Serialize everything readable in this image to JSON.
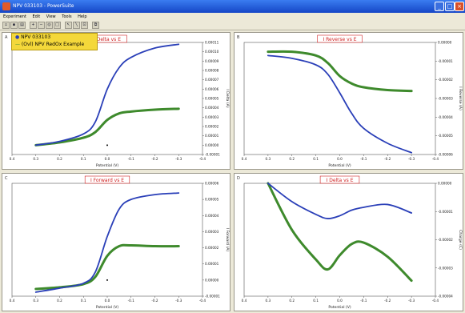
{
  "window": {
    "title": "NPV 033103 - PowerSuite"
  },
  "menu": [
    "Experiment",
    "Edit",
    "View",
    "Tools",
    "Help"
  ],
  "toolbar_icons": [
    "open-icon",
    "save-icon",
    "print-icon",
    "zoom-in-icon",
    "zoom-out-icon",
    "zoom-fit-icon",
    "zoom-box-icon",
    "cursor-icon",
    "line-icon",
    "scale-icon",
    "copy-icon"
  ],
  "legend": {
    "entries": [
      "NPV 033103",
      "(Ovl) NPV RedOx Example"
    ]
  },
  "colors": {
    "series_blue": "#2a3fb8",
    "series_green": "#3e8a2c",
    "title_red": "#d02020"
  },
  "panels": [
    {
      "label": "A",
      "title": "I Delta vs E",
      "xlabel": "Potential (V)",
      "ylabel": "I Delta (A)"
    },
    {
      "label": "B",
      "title": "I Reverse vs E",
      "xlabel": "Potential (V)",
      "ylabel": "I Reverse (A)"
    },
    {
      "label": "C",
      "title": "I Forward vs E",
      "xlabel": "Potential (V)",
      "ylabel": "I Forward (A)"
    },
    {
      "label": "D",
      "title": "I Delta vs E",
      "xlabel": "Potential (V)",
      "ylabel": "Charge (C)"
    }
  ],
  "chart_data": [
    {
      "type": "line",
      "title": "I Delta vs E",
      "xlabel": "Potential (V)",
      "ylabel": "I Delta (A)",
      "xlim": [
        0.4,
        -0.4
      ],
      "ylim": [
        -1e-05,
        0.00011
      ],
      "xticks": [
        "0.4",
        "0.3",
        "0.2",
        "0.1",
        "0.0",
        "-0.1",
        "-0.2",
        "-0.3",
        "-0.4"
      ],
      "yticks": [
        "-0.00001",
        "0.00000",
        "0.00001",
        "0.00002",
        "0.00003",
        "0.00004",
        "0.00005",
        "0.00006",
        "0.00007",
        "0.00008",
        "0.00009",
        "0.00010",
        "0.00011"
      ],
      "series": [
        {
          "name": "NPV 033103",
          "x": [
            0.3,
            0.2,
            0.1,
            0.05,
            0.0,
            -0.05,
            -0.1,
            -0.2,
            -0.3
          ],
          "y": [
            0.0,
            4e-06,
            1.2e-05,
            2.5e-05,
            6e-05,
            8.3e-05,
            9.4e-05,
            0.000104,
            0.000108
          ]
        },
        {
          "name": "(Ovl) NPV RedOx Example",
          "x": [
            0.3,
            0.2,
            0.1,
            0.05,
            0.0,
            -0.05,
            -0.1,
            -0.2,
            -0.3
          ],
          "y": [
            0.0,
            3e-06,
            8e-06,
            1.4e-05,
            2.7e-05,
            3.4e-05,
            3.6e-05,
            3.8e-05,
            3.9e-05
          ]
        }
      ]
    },
    {
      "type": "line",
      "title": "I Reverse vs E",
      "xlabel": "Potential (V)",
      "ylabel": "I Reverse (A)",
      "xlim": [
        0.4,
        -0.4
      ],
      "ylim": [
        -6e-05,
        0.0
      ],
      "xticks": [
        "0.4",
        "0.3",
        "0.2",
        "0.1",
        "0.0",
        "-0.1",
        "-0.2",
        "-0.3",
        "-0.4"
      ],
      "yticks": [
        "-0.00006",
        "-0.00005",
        "-0.00004",
        "-0.00003",
        "-0.00002",
        "-0.00001",
        "0.00000"
      ],
      "series": [
        {
          "name": "NPV 033103",
          "x": [
            0.3,
            0.2,
            0.1,
            0.05,
            0.0,
            -0.05,
            -0.1,
            -0.2,
            -0.3
          ],
          "y": [
            -7e-06,
            -8.5e-06,
            -1.2e-05,
            -1.7e-05,
            -2.7e-05,
            -3.8e-05,
            -4.6e-05,
            -5.4e-05,
            -5.9e-05
          ]
        },
        {
          "name": "(Ovl) NPV RedOx Example",
          "x": [
            0.3,
            0.2,
            0.1,
            0.05,
            0.0,
            -0.05,
            -0.1,
            -0.2,
            -0.3
          ],
          "y": [
            -5e-06,
            -5e-06,
            -7e-06,
            -1.1e-05,
            -1.8e-05,
            -2.2e-05,
            -2.4e-05,
            -2.55e-05,
            -2.6e-05
          ]
        }
      ]
    },
    {
      "type": "line",
      "title": "I Forward vs E",
      "xlabel": "Potential (V)",
      "ylabel": "I Forward (A)",
      "xlim": [
        0.4,
        -0.4
      ],
      "ylim": [
        -1e-05,
        6e-05
      ],
      "xticks": [
        "0.4",
        "0.3",
        "0.2",
        "0.1",
        "0.0",
        "-0.1",
        "-0.2",
        "-0.3",
        "-0.4"
      ],
      "yticks": [
        "-0.00001",
        "0.00000",
        "0.00001",
        "0.00002",
        "0.00003",
        "0.00004",
        "0.00005",
        "0.00006"
      ],
      "series": [
        {
          "name": "NPV 033103",
          "x": [
            0.3,
            0.2,
            0.1,
            0.05,
            0.0,
            -0.05,
            -0.1,
            -0.2,
            -0.3
          ],
          "y": [
            -7.5e-06,
            -5e-06,
            -2e-06,
            5e-06,
            2.7e-05,
            4.4e-05,
            5e-05,
            5.3e-05,
            5.4e-05
          ]
        },
        {
          "name": "(Ovl) NPV RedOx Example",
          "x": [
            0.3,
            0.2,
            0.1,
            0.05,
            0.0,
            -0.05,
            -0.1,
            -0.2,
            -0.3
          ],
          "y": [
            -5.5e-06,
            -4.5e-06,
            -2.5e-06,
            2e-06,
            1.5e-05,
            2.1e-05,
            2.15e-05,
            2.1e-05,
            2.1e-05
          ]
        }
      ]
    },
    {
      "type": "line",
      "title": "I Delta vs E",
      "xlabel": "Potential (V)",
      "ylabel": "Charge (C)",
      "xlim": [
        0.4,
        -0.4
      ],
      "ylim": [
        -4e-05,
        0.0
      ],
      "xticks": [
        "0.4",
        "0.3",
        "0.2",
        "0.1",
        "0.0",
        "-0.1",
        "-0.2",
        "-0.3",
        "-0.4"
      ],
      "yticks": [
        "-0.00004",
        "-0.00003",
        "-0.00002",
        "-0.00001",
        "0.00000"
      ],
      "series": [
        {
          "name": "NPV 033103",
          "x": [
            0.3,
            0.2,
            0.1,
            0.05,
            0.0,
            -0.05,
            -0.1,
            -0.2,
            -0.3
          ],
          "y": [
            0.0,
            -6.5e-06,
            -1.1e-05,
            -1.25e-05,
            -1.15e-05,
            -9.5e-06,
            -8.5e-06,
            -7.5e-06,
            -1.05e-05
          ]
        },
        {
          "name": "(Ovl) NPV RedOx Example",
          "x": [
            0.3,
            0.2,
            0.1,
            0.05,
            0.0,
            -0.05,
            -0.1,
            -0.2,
            -0.3
          ],
          "y": [
            0.0,
            -1.65e-05,
            -2.7e-05,
            -3.05e-05,
            -2.55e-05,
            -2.15e-05,
            -2.1e-05,
            -2.6e-05,
            -3.45e-05
          ]
        }
      ]
    }
  ]
}
